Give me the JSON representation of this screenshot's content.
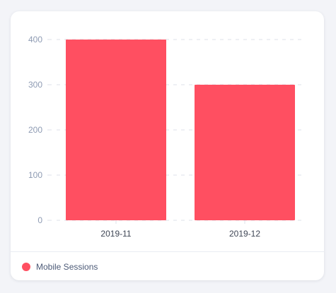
{
  "colors": {
    "bar": "#ff4f61",
    "y_tick": "#8e9bb3",
    "x_tick": "#3f4655",
    "grid": "#dde2ea",
    "legend_text": "#4c5a77"
  },
  "legend": {
    "items": [
      {
        "label": "Mobile Sessions",
        "color": "#ff4f61"
      }
    ]
  },
  "chart_data": {
    "type": "bar",
    "categories": [
      "2019-11",
      "2019-12"
    ],
    "series": [
      {
        "name": "Mobile Sessions",
        "values": [
          400,
          300
        ]
      }
    ],
    "yticks": [
      0,
      100,
      200,
      300,
      400
    ],
    "ylim": [
      0,
      400
    ],
    "grid": true,
    "legend_position": "bottom-left"
  }
}
